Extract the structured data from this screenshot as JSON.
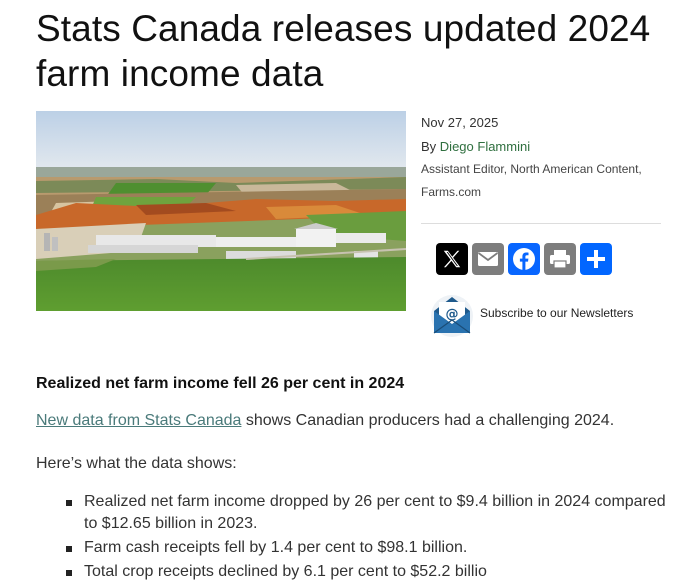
{
  "article": {
    "title": "Stats Canada releases updated 2024 farm income data",
    "date": "Nov 27, 2025",
    "byline_prefix": "By",
    "author": "Diego Flammini",
    "author_role": "Assistant Editor, North American Content, Farms.com",
    "hero_image_icon": "aerial-farm-photo"
  },
  "share": {
    "buttons": [
      {
        "label": "X",
        "icon": "x-logo-icon",
        "color": "#000000"
      },
      {
        "label": "Email",
        "icon": "email-icon",
        "color": "#7d7d7d"
      },
      {
        "label": "Facebook",
        "icon": "facebook-icon",
        "color": "#0866ff"
      },
      {
        "label": "Print",
        "icon": "print-icon",
        "color": "#7d7d7d"
      },
      {
        "label": "Share",
        "icon": "share-plus-icon",
        "color": "#0166ff"
      }
    ]
  },
  "newsletter": {
    "label": "Subscribe to our Newsletters",
    "icon": "newsletter-envelope-icon"
  },
  "body": {
    "heading": "Realized net farm income fell 26 per cent in 2024",
    "para1_link": "New data from Stats Canada",
    "para1_rest": " shows Canadian producers had a challenging 2024.",
    "para2": "Here’s what the data shows:",
    "bullets": [
      "Realized net farm income dropped by 26 per cent to $9.4 billion in 2024 compared to $12.65 billion in 2023.",
      "Farm cash receipts fell by 1.4 per cent to $98.1 billion.",
      "Total crop receipts declined by 6.1 per cent to $52.2 billio"
    ]
  },
  "colors": {
    "link": "#4a7a7a",
    "author_link": "#2f6f3f"
  }
}
